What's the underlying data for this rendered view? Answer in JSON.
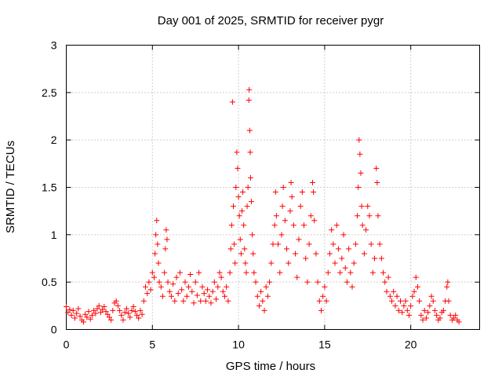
{
  "chart_data": {
    "type": "scatter",
    "title": "Day 001 of 2025, SRMTID for receiver pygr",
    "xlabel": "GPS time / hours",
    "ylabel": "SRMTID / TECUs",
    "xlim": [
      0,
      24
    ],
    "ylim": [
      0,
      3
    ],
    "xticks": [
      0,
      5,
      10,
      15,
      20
    ],
    "yticks": [
      0,
      0.5,
      1,
      1.5,
      2,
      2.5,
      3
    ],
    "xtick_labels": [
      "0",
      "5",
      "10",
      "15",
      "20"
    ],
    "ytick_labels": [
      "0",
      "0.5",
      "1",
      "1.5",
      "2",
      "2.5",
      "3"
    ],
    "grid": true,
    "marker": "+",
    "color": "#ff0000",
    "series": [
      {
        "name": "SRMTID",
        "points": [
          [
            0.0,
            0.24
          ],
          [
            0.1,
            0.18
          ],
          [
            0.2,
            0.21
          ],
          [
            0.3,
            0.15
          ],
          [
            0.4,
            0.2
          ],
          [
            0.5,
            0.12
          ],
          [
            0.6,
            0.17
          ],
          [
            0.7,
            0.22
          ],
          [
            0.8,
            0.14
          ],
          [
            0.9,
            0.1
          ],
          [
            1.0,
            0.08
          ],
          [
            1.1,
            0.16
          ],
          [
            1.2,
            0.13
          ],
          [
            1.3,
            0.19
          ],
          [
            1.4,
            0.11
          ],
          [
            1.5,
            0.15
          ],
          [
            1.6,
            0.2
          ],
          [
            1.7,
            0.17
          ],
          [
            1.8,
            0.22
          ],
          [
            1.9,
            0.25
          ],
          [
            2.0,
            0.18
          ],
          [
            2.1,
            0.21
          ],
          [
            2.2,
            0.24
          ],
          [
            2.3,
            0.19
          ],
          [
            2.4,
            0.16
          ],
          [
            2.5,
            0.13
          ],
          [
            2.6,
            0.1
          ],
          [
            2.7,
            0.2
          ],
          [
            2.8,
            0.28
          ],
          [
            2.9,
            0.3
          ],
          [
            3.0,
            0.25
          ],
          [
            3.1,
            0.2
          ],
          [
            3.2,
            0.15
          ],
          [
            3.3,
            0.1
          ],
          [
            3.4,
            0.18
          ],
          [
            3.5,
            0.22
          ],
          [
            3.6,
            0.17
          ],
          [
            3.7,
            0.13
          ],
          [
            3.8,
            0.2
          ],
          [
            3.9,
            0.24
          ],
          [
            4.0,
            0.19
          ],
          [
            4.1,
            0.15
          ],
          [
            4.2,
            0.12
          ],
          [
            4.3,
            0.2
          ],
          [
            4.4,
            0.16
          ],
          [
            4.5,
            0.3
          ],
          [
            4.6,
            0.45
          ],
          [
            4.7,
            0.38
          ],
          [
            4.8,
            0.5
          ],
          [
            4.9,
            0.42
          ],
          [
            5.0,
            0.6
          ],
          [
            5.1,
            0.55
          ],
          [
            5.15,
            0.8
          ],
          [
            5.2,
            1.0
          ],
          [
            5.25,
            1.15
          ],
          [
            5.3,
            0.9
          ],
          [
            5.35,
            0.7
          ],
          [
            5.4,
            0.5
          ],
          [
            5.5,
            0.45
          ],
          [
            5.6,
            0.35
          ],
          [
            5.7,
            0.6
          ],
          [
            5.75,
            0.85
          ],
          [
            5.8,
            1.05
          ],
          [
            5.85,
            0.95
          ],
          [
            5.9,
            0.5
          ],
          [
            6.0,
            0.4
          ],
          [
            6.1,
            0.35
          ],
          [
            6.2,
            0.48
          ],
          [
            6.3,
            0.3
          ],
          [
            6.4,
            0.55
          ],
          [
            6.5,
            0.38
          ],
          [
            6.6,
            0.6
          ],
          [
            6.7,
            0.42
          ],
          [
            6.8,
            0.3
          ],
          [
            6.9,
            0.5
          ],
          [
            7.0,
            0.35
          ],
          [
            7.1,
            0.45
          ],
          [
            7.2,
            0.58
          ],
          [
            7.3,
            0.4
          ],
          [
            7.4,
            0.28
          ],
          [
            7.5,
            0.5
          ],
          [
            7.6,
            0.36
          ],
          [
            7.7,
            0.6
          ],
          [
            7.8,
            0.3
          ],
          [
            7.9,
            0.45
          ],
          [
            8.0,
            0.38
          ],
          [
            8.1,
            0.3
          ],
          [
            8.2,
            0.42
          ],
          [
            8.3,
            0.35
          ],
          [
            8.4,
            0.28
          ],
          [
            8.5,
            0.4
          ],
          [
            8.6,
            0.5
          ],
          [
            8.7,
            0.32
          ],
          [
            8.8,
            0.45
          ],
          [
            8.9,
            0.6
          ],
          [
            9.0,
            0.55
          ],
          [
            9.1,
            0.4
          ],
          [
            9.2,
            0.35
          ],
          [
            9.3,
            0.45
          ],
          [
            9.4,
            0.3
          ],
          [
            9.5,
            0.6
          ],
          [
            9.55,
            0.85
          ],
          [
            9.6,
            1.1
          ],
          [
            9.65,
            2.4
          ],
          [
            9.7,
            1.3
          ],
          [
            9.75,
            0.9
          ],
          [
            9.8,
            0.7
          ],
          [
            9.85,
            1.5
          ],
          [
            9.9,
            1.87
          ],
          [
            9.95,
            1.7
          ],
          [
            10.0,
            1.4
          ],
          [
            10.05,
            1.2
          ],
          [
            10.1,
            0.95
          ],
          [
            10.15,
            0.8
          ],
          [
            10.2,
            1.25
          ],
          [
            10.25,
            1.45
          ],
          [
            10.3,
            1.1
          ],
          [
            10.35,
            0.85
          ],
          [
            10.4,
            0.7
          ],
          [
            10.45,
            0.6
          ],
          [
            10.5,
            1.3
          ],
          [
            10.55,
            1.5
          ],
          [
            10.6,
            2.42
          ],
          [
            10.62,
            2.53
          ],
          [
            10.65,
            2.1
          ],
          [
            10.68,
            1.87
          ],
          [
            10.7,
            1.6
          ],
          [
            10.75,
            1.35
          ],
          [
            10.8,
            1.0
          ],
          [
            10.85,
            0.8
          ],
          [
            10.9,
            0.6
          ],
          [
            11.0,
            0.5
          ],
          [
            11.1,
            0.35
          ],
          [
            11.2,
            0.25
          ],
          [
            11.3,
            0.4
          ],
          [
            11.4,
            0.3
          ],
          [
            11.5,
            0.2
          ],
          [
            11.6,
            0.45
          ],
          [
            11.7,
            0.35
          ],
          [
            11.8,
            0.5
          ],
          [
            11.9,
            0.7
          ],
          [
            12.0,
            0.9
          ],
          [
            12.1,
            1.1
          ],
          [
            12.15,
            1.45
          ],
          [
            12.2,
            1.2
          ],
          [
            12.3,
            0.9
          ],
          [
            12.4,
            0.6
          ],
          [
            12.5,
            1.0
          ],
          [
            12.55,
            1.3
          ],
          [
            12.6,
            1.5
          ],
          [
            12.7,
            1.15
          ],
          [
            12.8,
            0.85
          ],
          [
            12.9,
            0.7
          ],
          [
            13.0,
            1.25
          ],
          [
            13.05,
            1.55
          ],
          [
            13.1,
            1.4
          ],
          [
            13.2,
            1.1
          ],
          [
            13.3,
            0.8
          ],
          [
            13.4,
            0.55
          ],
          [
            13.5,
            0.95
          ],
          [
            13.6,
            1.3
          ],
          [
            13.7,
            1.45
          ],
          [
            13.8,
            1.1
          ],
          [
            13.9,
            0.75
          ],
          [
            14.0,
            0.5
          ],
          [
            14.1,
            0.9
          ],
          [
            14.2,
            1.2
          ],
          [
            14.3,
            1.55
          ],
          [
            14.35,
            1.45
          ],
          [
            14.4,
            1.15
          ],
          [
            14.5,
            0.8
          ],
          [
            14.6,
            0.5
          ],
          [
            14.7,
            0.3
          ],
          [
            14.8,
            0.2
          ],
          [
            14.9,
            0.35
          ],
          [
            15.0,
            0.45
          ],
          [
            15.1,
            0.3
          ],
          [
            15.2,
            0.6
          ],
          [
            15.3,
            0.8
          ],
          [
            15.4,
            1.05
          ],
          [
            15.5,
            0.9
          ],
          [
            15.6,
            0.7
          ],
          [
            15.7,
            1.1
          ],
          [
            15.8,
            0.85
          ],
          [
            15.9,
            0.6
          ],
          [
            16.0,
            0.75
          ],
          [
            16.1,
            1.0
          ],
          [
            16.2,
            0.65
          ],
          [
            16.3,
            0.5
          ],
          [
            16.4,
            0.85
          ],
          [
            16.5,
            0.6
          ],
          [
            16.6,
            0.45
          ],
          [
            16.7,
            0.7
          ],
          [
            16.8,
            0.9
          ],
          [
            16.9,
            1.2
          ],
          [
            16.95,
            1.5
          ],
          [
            17.0,
            2.0
          ],
          [
            17.05,
            1.85
          ],
          [
            17.1,
            1.65
          ],
          [
            17.15,
            1.3
          ],
          [
            17.2,
            1.1
          ],
          [
            17.3,
            0.8
          ],
          [
            17.4,
            1.05
          ],
          [
            17.5,
            1.3
          ],
          [
            17.6,
            1.2
          ],
          [
            17.7,
            0.9
          ],
          [
            17.8,
            0.6
          ],
          [
            17.9,
            0.75
          ],
          [
            18.0,
            1.7
          ],
          [
            18.05,
            1.55
          ],
          [
            18.1,
            1.2
          ],
          [
            18.2,
            0.9
          ],
          [
            18.3,
            0.75
          ],
          [
            18.4,
            0.6
          ],
          [
            18.5,
            0.5
          ],
          [
            18.6,
            0.4
          ],
          [
            18.7,
            0.55
          ],
          [
            18.8,
            0.35
          ],
          [
            18.9,
            0.3
          ],
          [
            19.0,
            0.4
          ],
          [
            19.1,
            0.25
          ],
          [
            19.2,
            0.35
          ],
          [
            19.3,
            0.2
          ],
          [
            19.4,
            0.3
          ],
          [
            19.5,
            0.18
          ],
          [
            19.6,
            0.25
          ],
          [
            19.7,
            0.3
          ],
          [
            19.8,
            0.2
          ],
          [
            19.9,
            0.15
          ],
          [
            20.0,
            0.25
          ],
          [
            20.1,
            0.35
          ],
          [
            20.2,
            0.4
          ],
          [
            20.3,
            0.55
          ],
          [
            20.4,
            0.45
          ],
          [
            20.5,
            0.3
          ],
          [
            20.6,
            0.15
          ],
          [
            20.7,
            0.1
          ],
          [
            20.8,
            0.2
          ],
          [
            20.9,
            0.12
          ],
          [
            21.0,
            0.18
          ],
          [
            21.1,
            0.25
          ],
          [
            21.2,
            0.35
          ],
          [
            21.3,
            0.3
          ],
          [
            21.4,
            0.2
          ],
          [
            21.5,
            0.15
          ],
          [
            21.6,
            0.1
          ],
          [
            21.7,
            0.12
          ],
          [
            21.8,
            0.18
          ],
          [
            21.9,
            0.2
          ],
          [
            22.0,
            0.3
          ],
          [
            22.1,
            0.45
          ],
          [
            22.15,
            0.5
          ],
          [
            22.2,
            0.3
          ],
          [
            22.3,
            0.15
          ],
          [
            22.4,
            0.1
          ],
          [
            22.5,
            0.12
          ],
          [
            22.6,
            0.15
          ],
          [
            22.7,
            0.1
          ],
          [
            22.8,
            0.08
          ]
        ]
      }
    ]
  }
}
